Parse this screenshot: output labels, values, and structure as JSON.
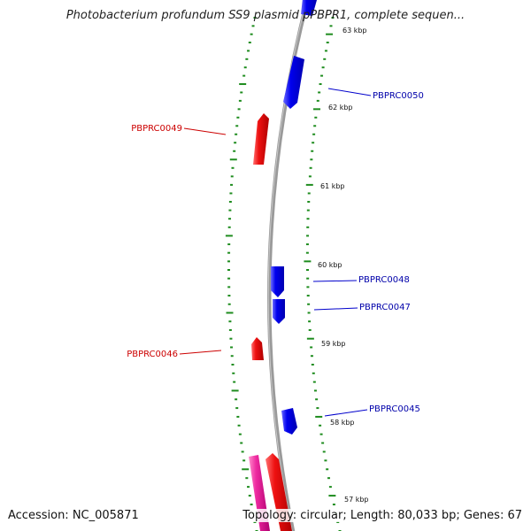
{
  "title": "Photobacterium profundum SS9 plasmid pPBPR1, complete sequen...",
  "accession": "Accession: NC_005871",
  "summary": "Topology: circular; Length: 80,033 bp; Genes: 67",
  "colors": {
    "backbone": "#8c8c8c",
    "tick": "#1e8c1e",
    "forward_gene": "#0000ee",
    "reverse_gene": "#ee1111",
    "reverse_gene_alt": "#ee2aa0"
  },
  "scale_labels": [
    "63 kbp",
    "62 kbp",
    "61 kbp",
    "60 kbp",
    "59 kbp",
    "58 kbp",
    "57 kbp"
  ],
  "genes": [
    {
      "label": "PBPRC0050",
      "strand": "forward"
    },
    {
      "label": "PBPRC0049",
      "strand": "reverse"
    },
    {
      "label": "PBPRC0048",
      "strand": "forward"
    },
    {
      "label": "PBPRC0047",
      "strand": "forward"
    },
    {
      "label": "PBPRC0046",
      "strand": "reverse"
    },
    {
      "label": "PBPRC0045",
      "strand": "forward"
    }
  ]
}
